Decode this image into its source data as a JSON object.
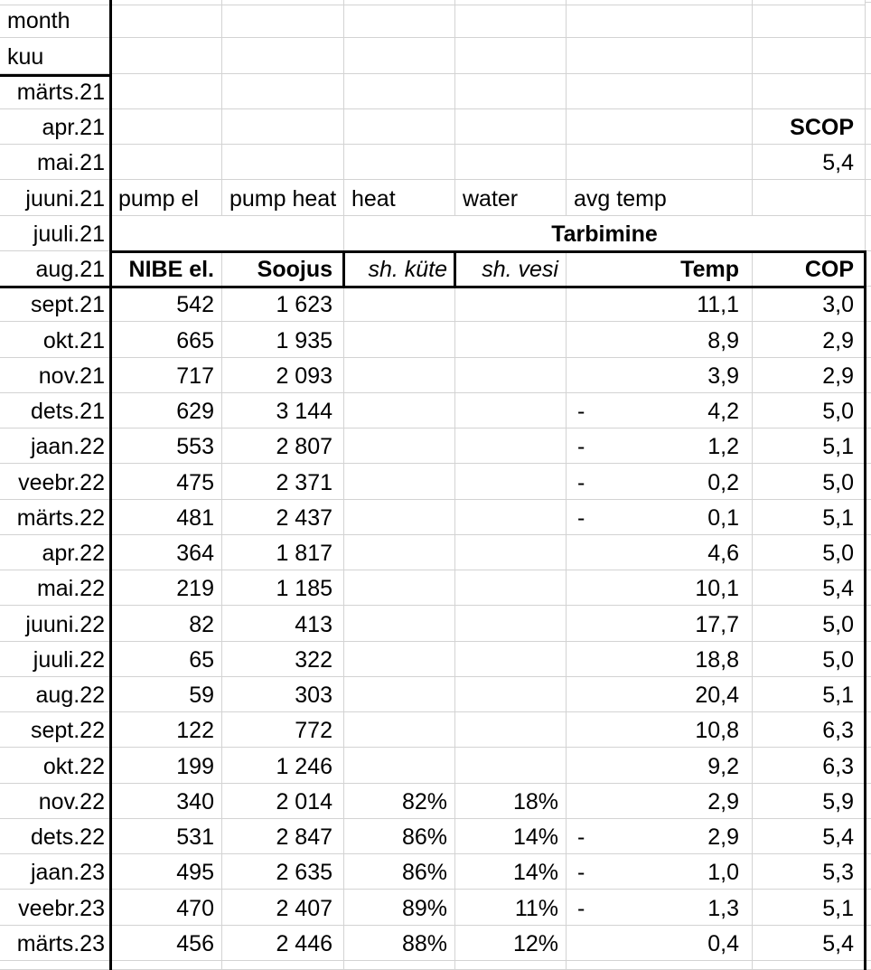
{
  "negative_sign": "-",
  "colors": {
    "background": "#ffffff",
    "text": "#000000",
    "grid_line": "#d3d3d3",
    "thick_border": "#000000"
  },
  "grid": {
    "rows": [
      {
        "name": "top-sliver-row",
        "cells": []
      },
      {
        "name": "month-label-row",
        "cells": [
          {
            "c": 1,
            "t": "month",
            "a": "l",
            "n": "corner-label-month"
          }
        ]
      },
      {
        "name": "kuu-label-row",
        "cells": [
          {
            "c": 1,
            "t": "kuu",
            "a": "l",
            "n": "corner-label-kuu"
          }
        ]
      },
      {
        "name": "row-marts21",
        "cells": [
          {
            "c": 1,
            "t": "märts.21",
            "a": "r",
            "n": "month-cell"
          }
        ]
      },
      {
        "name": "row-apr21",
        "cells": [
          {
            "c": 1,
            "t": "apr.21",
            "a": "r",
            "n": "month-cell"
          },
          {
            "c": 7,
            "t": "SCOP",
            "a": "r",
            "b": 1,
            "n": "scop-label"
          }
        ]
      },
      {
        "name": "row-mai21",
        "cells": [
          {
            "c": 1,
            "t": "mai.21",
            "a": "r",
            "n": "month-cell"
          },
          {
            "c": 7,
            "t": "5,4",
            "a": "r",
            "n": "scop-value"
          }
        ]
      },
      {
        "name": "row-juuni21",
        "cells": [
          {
            "c": 1,
            "t": "juuni.21",
            "a": "r",
            "n": "month-cell"
          },
          {
            "c": 2,
            "t": "pump el",
            "a": "l",
            "n": "draft-header-pump-el"
          },
          {
            "c": 3,
            "t": "pump heat",
            "a": "l",
            "n": "draft-header-pump-heat"
          },
          {
            "c": 4,
            "t": "heat",
            "a": "l",
            "n": "draft-header-heat"
          },
          {
            "c": 5,
            "t": "water",
            "a": "l",
            "n": "draft-header-water"
          },
          {
            "c": 6,
            "t": "avg temp",
            "a": "l",
            "n": "draft-header-avg-temp"
          }
        ]
      },
      {
        "name": "row-juuli21",
        "cells": [
          {
            "c": 1,
            "t": "juuli.21",
            "a": "r",
            "n": "month-cell"
          },
          {
            "c": 2,
            "t": "",
            "span": 2
          },
          {
            "c": 4,
            "t": "Tarbimine",
            "a": "c",
            "b": 1,
            "span": 4,
            "n": "tarbimine-group-header"
          }
        ]
      },
      {
        "name": "header-row",
        "cells": [
          {
            "c": 1,
            "t": "aug.21",
            "a": "r",
            "n": "header-month"
          },
          {
            "c": 2,
            "t": "NIBE el.",
            "a": "r",
            "b": 1,
            "n": "header-nibe-el"
          },
          {
            "c": 3,
            "t": "Soojus",
            "a": "r",
            "b": 1,
            "n": "header-soojus"
          },
          {
            "c": 4,
            "t": "sh. küte",
            "a": "r",
            "i": 1,
            "n": "header-sh-kyte"
          },
          {
            "c": 5,
            "t": "sh. vesi",
            "a": "r",
            "i": 1,
            "n": "header-sh-vesi"
          },
          {
            "c": 6,
            "t": "Temp",
            "a": "r",
            "b": 1,
            "n": "header-temp"
          },
          {
            "c": 7,
            "t": "COP",
            "a": "r",
            "b": 1,
            "n": "header-cop"
          }
        ]
      },
      {
        "name": "data-row",
        "cells": [
          {
            "c": 1,
            "t": "sept.21",
            "a": "r",
            "n": "month-cell"
          },
          {
            "c": 2,
            "t": "542",
            "a": "r"
          },
          {
            "c": 3,
            "t": "1 623",
            "a": "r"
          },
          {
            "c": 6,
            "t": "11,1",
            "a": "r"
          },
          {
            "c": 7,
            "t": "3,0",
            "a": "r"
          }
        ]
      },
      {
        "name": "data-row",
        "cells": [
          {
            "c": 1,
            "t": "okt.21",
            "a": "r",
            "n": "month-cell"
          },
          {
            "c": 2,
            "t": "665",
            "a": "r"
          },
          {
            "c": 3,
            "t": "1 935",
            "a": "r"
          },
          {
            "c": 6,
            "t": "8,9",
            "a": "r"
          },
          {
            "c": 7,
            "t": "2,9",
            "a": "r"
          }
        ]
      },
      {
        "name": "data-row",
        "cells": [
          {
            "c": 1,
            "t": "nov.21",
            "a": "r",
            "n": "month-cell"
          },
          {
            "c": 2,
            "t": "717",
            "a": "r"
          },
          {
            "c": 3,
            "t": "2 093",
            "a": "r"
          },
          {
            "c": 6,
            "t": "3,9",
            "a": "r"
          },
          {
            "c": 7,
            "t": "2,9",
            "a": "r"
          }
        ]
      },
      {
        "name": "data-row",
        "cells": [
          {
            "c": 1,
            "t": "dets.21",
            "a": "r",
            "n": "month-cell"
          },
          {
            "c": 2,
            "t": "629",
            "a": "r"
          },
          {
            "c": 3,
            "t": "3 144",
            "a": "r"
          },
          {
            "c": 6,
            "t": "4,2",
            "a": "r",
            "neg": true
          },
          {
            "c": 7,
            "t": "5,0",
            "a": "r"
          }
        ]
      },
      {
        "name": "data-row",
        "cells": [
          {
            "c": 1,
            "t": "jaan.22",
            "a": "r",
            "n": "month-cell"
          },
          {
            "c": 2,
            "t": "553",
            "a": "r"
          },
          {
            "c": 3,
            "t": "2 807",
            "a": "r"
          },
          {
            "c": 6,
            "t": "1,2",
            "a": "r",
            "neg": true
          },
          {
            "c": 7,
            "t": "5,1",
            "a": "r"
          }
        ]
      },
      {
        "name": "data-row",
        "cells": [
          {
            "c": 1,
            "t": "veebr.22",
            "a": "r",
            "n": "month-cell"
          },
          {
            "c": 2,
            "t": "475",
            "a": "r"
          },
          {
            "c": 3,
            "t": "2 371",
            "a": "r"
          },
          {
            "c": 6,
            "t": "0,2",
            "a": "r",
            "neg": true
          },
          {
            "c": 7,
            "t": "5,0",
            "a": "r"
          }
        ]
      },
      {
        "name": "data-row",
        "cells": [
          {
            "c": 1,
            "t": "märts.22",
            "a": "r",
            "n": "month-cell"
          },
          {
            "c": 2,
            "t": "481",
            "a": "r"
          },
          {
            "c": 3,
            "t": "2 437",
            "a": "r"
          },
          {
            "c": 6,
            "t": "0,1",
            "a": "r",
            "neg": true
          },
          {
            "c": 7,
            "t": "5,1",
            "a": "r"
          }
        ]
      },
      {
        "name": "data-row",
        "cells": [
          {
            "c": 1,
            "t": "apr.22",
            "a": "r",
            "n": "month-cell"
          },
          {
            "c": 2,
            "t": "364",
            "a": "r"
          },
          {
            "c": 3,
            "t": "1 817",
            "a": "r"
          },
          {
            "c": 6,
            "t": "4,6",
            "a": "r"
          },
          {
            "c": 7,
            "t": "5,0",
            "a": "r"
          }
        ]
      },
      {
        "name": "data-row",
        "cells": [
          {
            "c": 1,
            "t": "mai.22",
            "a": "r",
            "n": "month-cell"
          },
          {
            "c": 2,
            "t": "219",
            "a": "r"
          },
          {
            "c": 3,
            "t": "1 185",
            "a": "r"
          },
          {
            "c": 6,
            "t": "10,1",
            "a": "r"
          },
          {
            "c": 7,
            "t": "5,4",
            "a": "r"
          }
        ]
      },
      {
        "name": "data-row",
        "cells": [
          {
            "c": 1,
            "t": "juuni.22",
            "a": "r",
            "n": "month-cell"
          },
          {
            "c": 2,
            "t": "82",
            "a": "r"
          },
          {
            "c": 3,
            "t": "413",
            "a": "r"
          },
          {
            "c": 6,
            "t": "17,7",
            "a": "r"
          },
          {
            "c": 7,
            "t": "5,0",
            "a": "r"
          }
        ]
      },
      {
        "name": "data-row",
        "cells": [
          {
            "c": 1,
            "t": "juuli.22",
            "a": "r",
            "n": "month-cell"
          },
          {
            "c": 2,
            "t": "65",
            "a": "r"
          },
          {
            "c": 3,
            "t": "322",
            "a": "r"
          },
          {
            "c": 6,
            "t": "18,8",
            "a": "r"
          },
          {
            "c": 7,
            "t": "5,0",
            "a": "r"
          }
        ]
      },
      {
        "name": "data-row",
        "cells": [
          {
            "c": 1,
            "t": "aug.22",
            "a": "r",
            "n": "month-cell"
          },
          {
            "c": 2,
            "t": "59",
            "a": "r"
          },
          {
            "c": 3,
            "t": "303",
            "a": "r"
          },
          {
            "c": 6,
            "t": "20,4",
            "a": "r"
          },
          {
            "c": 7,
            "t": "5,1",
            "a": "r"
          }
        ]
      },
      {
        "name": "data-row",
        "cells": [
          {
            "c": 1,
            "t": "sept.22",
            "a": "r",
            "n": "month-cell"
          },
          {
            "c": 2,
            "t": "122",
            "a": "r"
          },
          {
            "c": 3,
            "t": "772",
            "a": "r"
          },
          {
            "c": 6,
            "t": "10,8",
            "a": "r"
          },
          {
            "c": 7,
            "t": "6,3",
            "a": "r"
          }
        ]
      },
      {
        "name": "data-row",
        "cells": [
          {
            "c": 1,
            "t": "okt.22",
            "a": "r",
            "n": "month-cell"
          },
          {
            "c": 2,
            "t": "199",
            "a": "r"
          },
          {
            "c": 3,
            "t": "1 246",
            "a": "r"
          },
          {
            "c": 6,
            "t": "9,2",
            "a": "r"
          },
          {
            "c": 7,
            "t": "6,3",
            "a": "r"
          }
        ]
      },
      {
        "name": "data-row",
        "cells": [
          {
            "c": 1,
            "t": "nov.22",
            "a": "r",
            "n": "month-cell"
          },
          {
            "c": 2,
            "t": "340",
            "a": "r"
          },
          {
            "c": 3,
            "t": "2 014",
            "a": "r"
          },
          {
            "c": 4,
            "t": "82%",
            "a": "r"
          },
          {
            "c": 5,
            "t": "18%",
            "a": "r"
          },
          {
            "c": 6,
            "t": "2,9",
            "a": "r"
          },
          {
            "c": 7,
            "t": "5,9",
            "a": "r"
          }
        ]
      },
      {
        "name": "data-row",
        "cells": [
          {
            "c": 1,
            "t": "dets.22",
            "a": "r",
            "n": "month-cell"
          },
          {
            "c": 2,
            "t": "531",
            "a": "r"
          },
          {
            "c": 3,
            "t": "2 847",
            "a": "r"
          },
          {
            "c": 4,
            "t": "86%",
            "a": "r"
          },
          {
            "c": 5,
            "t": "14%",
            "a": "r"
          },
          {
            "c": 6,
            "t": "2,9",
            "a": "r",
            "neg": true
          },
          {
            "c": 7,
            "t": "5,4",
            "a": "r"
          }
        ]
      },
      {
        "name": "data-row",
        "cells": [
          {
            "c": 1,
            "t": "jaan.23",
            "a": "r",
            "n": "month-cell"
          },
          {
            "c": 2,
            "t": "495",
            "a": "r"
          },
          {
            "c": 3,
            "t": "2 635",
            "a": "r"
          },
          {
            "c": 4,
            "t": "86%",
            "a": "r"
          },
          {
            "c": 5,
            "t": "14%",
            "a": "r"
          },
          {
            "c": 6,
            "t": "1,0",
            "a": "r",
            "neg": true
          },
          {
            "c": 7,
            "t": "5,3",
            "a": "r"
          }
        ]
      },
      {
        "name": "data-row",
        "cells": [
          {
            "c": 1,
            "t": "veebr.23",
            "a": "r",
            "n": "month-cell"
          },
          {
            "c": 2,
            "t": "470",
            "a": "r"
          },
          {
            "c": 3,
            "t": "2 407",
            "a": "r"
          },
          {
            "c": 4,
            "t": "89%",
            "a": "r"
          },
          {
            "c": 5,
            "t": "11%",
            "a": "r"
          },
          {
            "c": 6,
            "t": "1,3",
            "a": "r",
            "neg": true
          },
          {
            "c": 7,
            "t": "5,1",
            "a": "r"
          }
        ]
      },
      {
        "name": "data-row",
        "cells": [
          {
            "c": 1,
            "t": "märts.23",
            "a": "r",
            "n": "month-cell"
          },
          {
            "c": 2,
            "t": "456",
            "a": "r"
          },
          {
            "c": 3,
            "t": "2 446",
            "a": "r"
          },
          {
            "c": 4,
            "t": "88%",
            "a": "r"
          },
          {
            "c": 5,
            "t": "12%",
            "a": "r"
          },
          {
            "c": 6,
            "t": "0,4",
            "a": "r"
          },
          {
            "c": 7,
            "t": "5,4",
            "a": "r"
          }
        ]
      },
      {
        "name": "bottom-sliver-row",
        "cells": []
      }
    ]
  }
}
